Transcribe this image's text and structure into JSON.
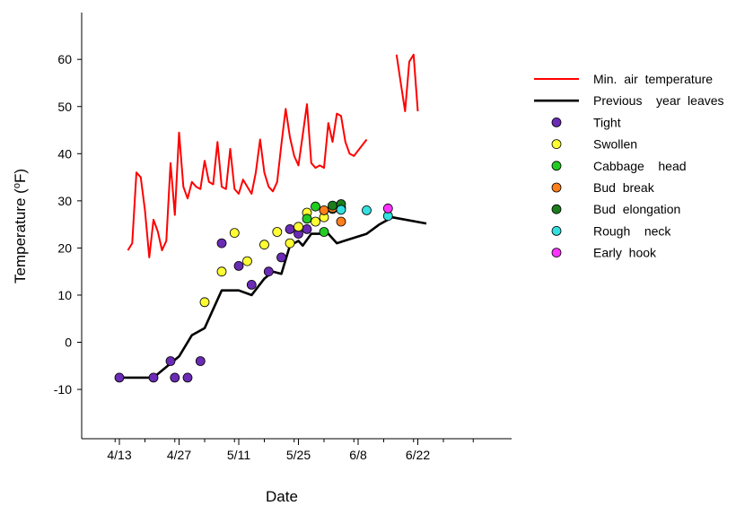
{
  "chart_data": {
    "type": "scatter",
    "xlabel": "Date",
    "ylabel": "Temperature  (°F)",
    "ylabel_parts": {
      "prefix": "Temperature  (",
      "superscript": "o",
      "suffix": "F)"
    },
    "x_axis": {
      "ticks": [
        "4/13",
        "4/27",
        "5/11",
        "5/25",
        "6/8",
        "6/22"
      ],
      "range": [
        "4/8",
        "7/3"
      ]
    },
    "y_axis": {
      "ticks": [
        "-10",
        "0",
        "10",
        "20",
        "30",
        "40",
        "50",
        "60"
      ],
      "range": [
        -20,
        72
      ]
    },
    "grid": false,
    "legend_position": "right",
    "series": [
      {
        "name": "Min.  air  temperature",
        "kind": "line",
        "color": "#ff0000",
        "segments": [
          [
            [
              "4/15",
              19.5
            ],
            [
              "4/16",
              21
            ],
            [
              "4/17",
              36
            ],
            [
              "4/18",
              35
            ],
            [
              "4/19",
              28
            ],
            [
              "4/20",
              18
            ],
            [
              "4/21",
              26
            ],
            [
              "4/22",
              23.5
            ],
            [
              "4/23",
              19.5
            ],
            [
              "4/24",
              21.5
            ],
            [
              "4/25",
              38
            ],
            [
              "4/26",
              27
            ],
            [
              "4/27",
              44.5
            ],
            [
              "4/28",
              33
            ],
            [
              "4/29",
              30.5
            ],
            [
              "4/30",
              34
            ],
            [
              "5/1",
              33
            ],
            [
              "5/2",
              32.5
            ],
            [
              "5/3",
              38.5
            ],
            [
              "5/4",
              34
            ],
            [
              "5/5",
              33.5
            ],
            [
              "5/6",
              42.5
            ],
            [
              "5/7",
              33
            ],
            [
              "5/8",
              32.5
            ],
            [
              "5/9",
              41
            ],
            [
              "5/10",
              32.5
            ],
            [
              "5/11",
              31.5
            ],
            [
              "5/12",
              34.5
            ],
            [
              "5/13",
              33
            ],
            [
              "5/14",
              31.5
            ],
            [
              "5/15",
              36
            ],
            [
              "5/16",
              43
            ],
            [
              "5/17",
              36
            ],
            [
              "5/18",
              33
            ],
            [
              "5/19",
              32
            ],
            [
              "5/20",
              34
            ],
            [
              "5/21",
              42
            ],
            [
              "5/22",
              49.5
            ],
            [
              "5/23",
              43.5
            ],
            [
              "5/24",
              39.5
            ],
            [
              "5/25",
              37.5
            ],
            [
              "5/26",
              44
            ],
            [
              "5/27",
              50.5
            ],
            [
              "5/28",
              38
            ],
            [
              "5/29",
              37
            ],
            [
              "5/30",
              37.5
            ],
            [
              "5/31",
              37
            ],
            [
              "6/1",
              46.5
            ],
            [
              "6/2",
              42.5
            ],
            [
              "6/3",
              48.5
            ],
            [
              "6/4",
              48
            ],
            [
              "6/5",
              42.5
            ],
            [
              "6/6",
              40
            ],
            [
              "6/7",
              39.5
            ],
            [
              "6/10",
              43
            ]
          ],
          [
            [
              "6/17",
              61
            ],
            [
              "6/18",
              55
            ],
            [
              "6/19",
              49
            ],
            [
              "6/20",
              59.5
            ],
            [
              "6/21",
              61
            ],
            [
              "6/22",
              49
            ]
          ]
        ]
      },
      {
        "name": "Previous    year  leaves",
        "kind": "line",
        "color": "#000000",
        "points": [
          [
            "4/13",
            -7.5
          ],
          [
            "4/21",
            -7.5
          ],
          [
            "4/25",
            -4.5
          ],
          [
            "4/27",
            -3
          ],
          [
            "4/30",
            1.5
          ],
          [
            "5/3",
            3
          ],
          [
            "5/7",
            11
          ],
          [
            "5/11",
            11
          ],
          [
            "5/14",
            10
          ],
          [
            "5/17",
            13.5
          ],
          [
            "5/19",
            15
          ],
          [
            "5/21",
            14.5
          ],
          [
            "5/23",
            20.5
          ],
          [
            "5/25",
            21.5
          ],
          [
            "5/26",
            20.5
          ],
          [
            "5/28",
            23
          ],
          [
            "5/30",
            23
          ],
          [
            "6/1",
            23
          ],
          [
            "6/3",
            21
          ],
          [
            "6/10",
            23
          ],
          [
            "6/13",
            25
          ],
          [
            "6/16",
            26.5
          ],
          [
            "6/24",
            25.2
          ]
        ]
      },
      {
        "name": "Tight",
        "kind": "scatter",
        "color": "#6a2bb5",
        "points": [
          [
            "4/13",
            -7.5
          ],
          [
            "4/21",
            -7.5
          ],
          [
            "4/25",
            -4
          ],
          [
            "4/26",
            -7.5
          ],
          [
            "4/29",
            -7.5
          ],
          [
            "5/2",
            -4
          ],
          [
            "5/7",
            21
          ],
          [
            "5/11",
            16.2
          ],
          [
            "5/14",
            12.2
          ],
          [
            "5/18",
            15
          ],
          [
            "5/21",
            18
          ],
          [
            "5/23",
            24
          ],
          [
            "5/25",
            23
          ],
          [
            "5/27",
            24
          ]
        ]
      },
      {
        "name": "Swollen",
        "kind": "scatter",
        "color": "#ffff33",
        "points": [
          [
            "5/3",
            8.5
          ],
          [
            "5/7",
            15
          ],
          [
            "5/10",
            23.2
          ],
          [
            "5/13",
            17.2
          ],
          [
            "5/17",
            20.7
          ],
          [
            "5/20",
            23.4
          ],
          [
            "5/23",
            21
          ],
          [
            "5/25",
            24.5
          ],
          [
            "5/27",
            27.5
          ],
          [
            "5/29",
            25.6
          ],
          [
            "5/31",
            26.5
          ],
          [
            "6/2",
            28.3
          ]
        ]
      },
      {
        "name": "Cabbage    head",
        "kind": "scatter",
        "color": "#22cc22",
        "points": [
          [
            "5/27",
            26.2
          ],
          [
            "5/29",
            28.8
          ],
          [
            "5/31",
            23.4
          ],
          [
            "6/2",
            28.3
          ],
          [
            "6/4",
            28.5
          ]
        ]
      },
      {
        "name": "Bud  break",
        "kind": "scatter",
        "color": "#ff7f1a",
        "points": [
          [
            "5/31",
            28
          ],
          [
            "6/2",
            28.5
          ],
          [
            "6/4",
            25.6
          ]
        ]
      },
      {
        "name": "Bud  elongation",
        "kind": "scatter",
        "color": "#1b7d1b",
        "points": [
          [
            "6/2",
            29
          ],
          [
            "6/4",
            29.3
          ]
        ]
      },
      {
        "name": "Rough    neck",
        "kind": "scatter",
        "color": "#33e0e0",
        "points": [
          [
            "6/4",
            28.1
          ],
          [
            "6/10",
            28
          ],
          [
            "6/15",
            26.8
          ]
        ]
      },
      {
        "name": "Early  hook",
        "kind": "scatter",
        "color": "#ff33ff",
        "points": [
          [
            "6/15",
            28.4
          ]
        ]
      }
    ]
  }
}
